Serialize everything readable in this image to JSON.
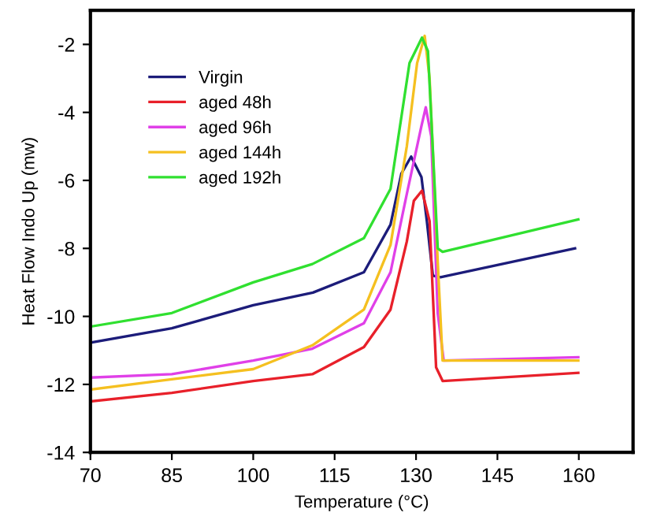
{
  "chart_data": {
    "type": "line",
    "xlabel": "Temperature (°C)",
    "ylabel": "Heat Flow Indo Up (mw)",
    "xlim": [
      70,
      170
    ],
    "ylim": [
      -14,
      -1
    ],
    "xticks": [
      70,
      85,
      100,
      115,
      130,
      145,
      160
    ],
    "yticks": [
      -14,
      -12,
      -10,
      -8,
      -6,
      -4,
      -2
    ],
    "grid": false,
    "legend": "top left",
    "marker": "none",
    "line_style": "solid",
    "series": [
      {
        "name": "Virgin",
        "color": "#1c1c7a",
        "x": [
          70,
          85,
          100,
          111,
          120.4,
          125.3,
          127.3,
          129.1,
          131,
          132,
          133.1,
          134.5,
          159.3
        ],
        "values": [
          -10.77,
          -10.35,
          -9.67,
          -9.3,
          -8.7,
          -7.3,
          -5.8,
          -5.3,
          -5.9,
          -7.2,
          -8.8,
          -8.85,
          -8.0
        ]
      },
      {
        "name": "aged 48h",
        "color": "#e8202a",
        "x": [
          70,
          85,
          100,
          110.9,
          120.4,
          125.3,
          128.3,
          129.6,
          131.1,
          132.5,
          133.7,
          134.9,
          159.9
        ],
        "values": [
          -12.5,
          -12.25,
          -11.9,
          -11.7,
          -10.9,
          -9.8,
          -7.8,
          -6.6,
          -6.3,
          -7.2,
          -11.5,
          -11.9,
          -11.66
        ]
      },
      {
        "name": "aged 96h",
        "color": "#e040e8",
        "x": [
          70,
          85,
          100,
          110.9,
          120.4,
          125.3,
          128.3,
          131,
          131.8,
          132.8,
          134,
          135.1,
          159.9
        ],
        "values": [
          -11.8,
          -11.7,
          -11.3,
          -10.95,
          -10.2,
          -8.7,
          -6.4,
          -4.4,
          -3.85,
          -4.7,
          -9.9,
          -11.3,
          -11.2
        ]
      },
      {
        "name": "aged 144h",
        "color": "#f5c020",
        "x": [
          70,
          85,
          100,
          110.9,
          120.4,
          125.3,
          128.3,
          130.2,
          131.6,
          132.5,
          134,
          134.9,
          159.9
        ],
        "values": [
          -12.15,
          -11.85,
          -11.55,
          -10.85,
          -9.8,
          -7.9,
          -5.0,
          -2.55,
          -1.75,
          -3.0,
          -8.4,
          -11.3,
          -11.3
        ]
      },
      {
        "name": "aged 192h",
        "color": "#30e030",
        "x": [
          70,
          85,
          100,
          110.9,
          120.4,
          125.3,
          128.8,
          131.1,
          132.2,
          134,
          134.9,
          159.9
        ],
        "values": [
          -10.3,
          -9.9,
          -9.0,
          -8.46,
          -7.7,
          -6.25,
          -2.55,
          -1.8,
          -2.2,
          -8.0,
          -8.1,
          -7.15
        ]
      }
    ]
  }
}
